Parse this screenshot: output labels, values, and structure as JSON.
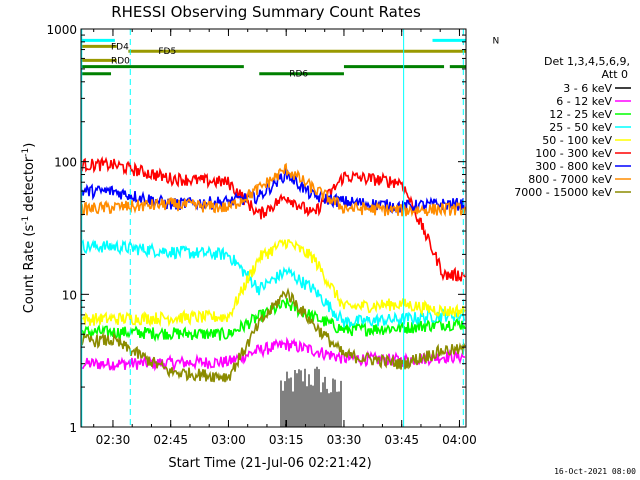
{
  "chart_data": {
    "type": "line",
    "title": "RHESSI Observing Summary Count Rates",
    "xlabel": "Start Time (21-Jul-06 02:21:42)",
    "ylabel_main": "Count Rate (s",
    "ylabel_sup1": "-1",
    "ylabel_mid": " detector",
    "ylabel_sup2": "-1",
    "ylabel_end": ")",
    "y_scale": "log",
    "ylim": [
      1,
      1000
    ],
    "xlim_minutes": [
      21.7,
      121.7
    ],
    "x_ticks": [
      {
        "minute": 30,
        "label": "02:30"
      },
      {
        "minute": 45,
        "label": "02:45"
      },
      {
        "minute": 60,
        "label": "03:00"
      },
      {
        "minute": 75,
        "label": "03:15"
      },
      {
        "minute": 90,
        "label": "03:30"
      },
      {
        "minute": 105,
        "label": "03:45"
      },
      {
        "minute": 120,
        "label": "04:00"
      }
    ],
    "y_ticks": [
      {
        "value": 1,
        "label": "1"
      },
      {
        "value": 10,
        "label": "10"
      },
      {
        "value": 100,
        "label": "100"
      },
      {
        "value": 1000,
        "label": "1000"
      }
    ],
    "legend": {
      "header1": "Det 1,3,4,5,6,9,",
      "header2": "Att 0",
      "placement": "right"
    },
    "series": [
      {
        "name": "3 - 6 keV",
        "color": "#000000",
        "mode": "burst",
        "minutes": [
          75,
          79,
          83,
          87
        ],
        "values": [
          2.6,
          3.0,
          3.0,
          2.4
        ],
        "base": 1.0
      },
      {
        "name": "6 - 12 keV",
        "color": "#ff00ff",
        "mode": "band",
        "minutes": [
          30,
          60,
          68,
          75,
          82,
          90,
          105,
          116
        ],
        "values": [
          3.0,
          3.1,
          3.8,
          4.2,
          3.8,
          3.3,
          3.2,
          3.4
        ]
      },
      {
        "name": "12 - 25 keV",
        "color": "#00ff00",
        "mode": "band",
        "minutes": [
          30,
          60,
          68,
          75,
          82,
          90,
          105,
          116
        ],
        "values": [
          5.2,
          5.0,
          6.8,
          8.5,
          6.8,
          5.4,
          5.6,
          6.0
        ]
      },
      {
        "name": "25 - 50 keV",
        "color": "#00ffff",
        "mode": "band",
        "minutes": [
          30,
          45,
          60,
          68,
          75,
          82,
          90,
          105,
          116
        ],
        "values": [
          23,
          21,
          20,
          11,
          15,
          11,
          6.2,
          6.5,
          7.0
        ]
      },
      {
        "name": "50 - 100 keV",
        "color": "#ffff00",
        "mode": "band",
        "minutes": [
          22,
          60,
          68,
          75,
          82,
          90,
          105,
          116
        ],
        "values": [
          6.5,
          6.8,
          19,
          25,
          19,
          8.0,
          8.5,
          7.5
        ]
      },
      {
        "name": "100 - 300 keV",
        "color": "#ff0000",
        "mode": "band",
        "minutes": [
          30,
          45,
          60,
          68,
          75,
          82,
          90,
          105,
          116
        ],
        "values": [
          95,
          75,
          70,
          40,
          55,
          40,
          78,
          70,
          14
        ]
      },
      {
        "name": "300 - 800 keV",
        "color": "#0000ff",
        "mode": "band",
        "minutes": [
          30,
          45,
          60,
          68,
          75,
          82,
          90,
          105,
          116
        ],
        "values": [
          60,
          48,
          50,
          55,
          82,
          55,
          50,
          46,
          48
        ]
      },
      {
        "name": "800 - 7000 keV",
        "color": "#ff8c00",
        "mode": "band",
        "minutes": [
          22,
          45,
          60,
          68,
          75,
          82,
          90,
          105,
          116
        ],
        "values": [
          44,
          48,
          45,
          63,
          88,
          63,
          45,
          43,
          44
        ]
      },
      {
        "name": "7000 - 15000 keV",
        "color": "#8b8b00",
        "mode": "band",
        "minutes": [
          30,
          45,
          60,
          68,
          75,
          82,
          90,
          105,
          116
        ],
        "values": [
          4.5,
          2.6,
          2.4,
          6.0,
          10.5,
          6.0,
          3.5,
          3.0,
          3.8
        ]
      }
    ],
    "bars": [
      {
        "label": "N",
        "color": "#00ffff",
        "segments": [
          [
            21.7,
            30.5
          ],
          [
            113.0,
            121.7
          ]
        ],
        "value": 820
      },
      {
        "label": "FD4",
        "color": "#999900",
        "segments": [
          [
            21.7,
            31
          ]
        ],
        "value": 740
      },
      {
        "label": "FD5",
        "color": "#999900",
        "segments": [
          [
            34,
            121.7
          ]
        ],
        "value": 680
      },
      {
        "label": "RD0",
        "color": "#999900",
        "segments": [
          [
            21.7,
            31
          ]
        ],
        "value": 580
      },
      {
        "label": "",
        "color": "#008000",
        "segments": [
          [
            21.7,
            64
          ],
          [
            90,
            116
          ],
          [
            117.5,
            121.7
          ]
        ],
        "value": 520
      },
      {
        "label": "RD6",
        "color": "#008000",
        "segments": [
          [
            21.7,
            29.5
          ],
          [
            68,
            90
          ]
        ],
        "value": 460
      }
    ],
    "vlines": [
      {
        "minute": 21.9,
        "dashed": false,
        "color": "#00ffff"
      },
      {
        "minute": 34.5,
        "dashed": true,
        "color": "#00ffff"
      },
      {
        "minute": 105.5,
        "dashed": false,
        "color": "#00ffff"
      },
      {
        "minute": 121,
        "dashed": true,
        "color": "#00ffff"
      }
    ]
  },
  "footer_date": "16-Oct-2021 08:00"
}
